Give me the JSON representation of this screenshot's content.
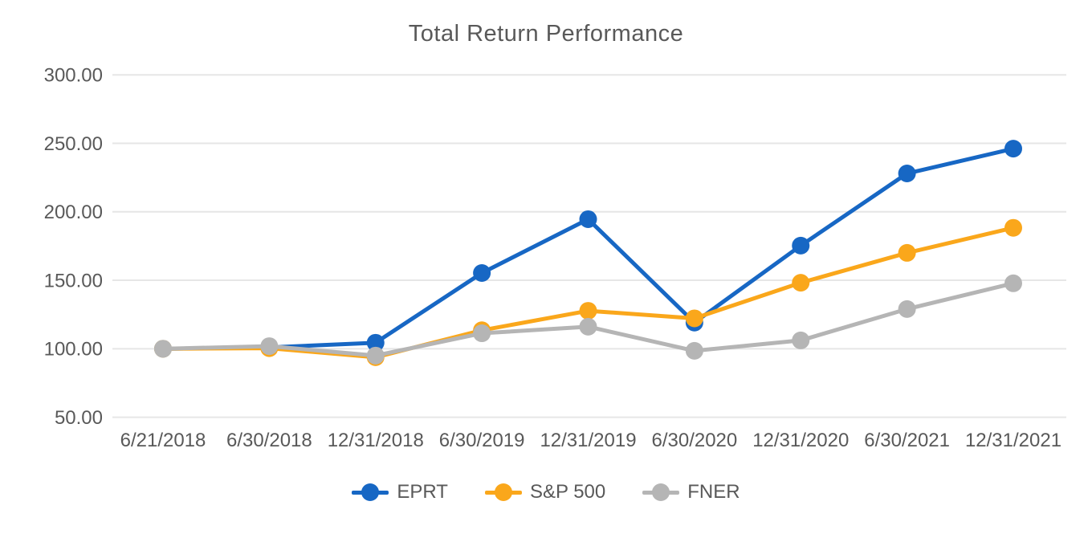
{
  "title": "Total Return Performance",
  "colors": {
    "text": "#595959",
    "gridline": "#E6E6E6",
    "background": "#FFFFFF",
    "eprt_blue": "#1767C4",
    "sp500_orange": "#FAA71B",
    "fner_gray": "#B5B5B5"
  },
  "chart_data": {
    "type": "line",
    "title": "Total Return Performance",
    "xlabel": "",
    "ylabel": "",
    "categories": [
      "6/21/2018",
      "6/30/2018",
      "12/31/2018",
      "6/30/2019",
      "12/31/2019",
      "6/30/2020",
      "12/31/2020",
      "6/30/2021",
      "12/31/2021"
    ],
    "series": [
      {
        "name": "EPRT",
        "color": "#1767C4",
        "values": [
          100.0,
          101.0,
          104.4,
          155.3,
          194.6,
          119.1,
          175.3,
          228.0,
          246.1
        ]
      },
      {
        "name": "S&P 500",
        "color": "#FAA71B",
        "values": [
          100.0,
          100.4,
          93.8,
          113.5,
          127.7,
          122.2,
          148.2,
          170.0,
          188.3
        ]
      },
      {
        "name": "FNER",
        "color": "#B5B5B5",
        "values": [
          100.0,
          101.9,
          95.0,
          111.3,
          116.1,
          98.5,
          106.1,
          129.0,
          147.8
        ]
      }
    ],
    "ylim": [
      50,
      300
    ],
    "y_ticks": [
      300,
      250,
      200,
      150,
      100,
      50
    ],
    "y_tick_labels": [
      "300.00",
      "250.00",
      "200.00",
      "150.00",
      "100.00",
      "50.00"
    ],
    "grid": "horizontal",
    "legend_position": "bottom"
  }
}
